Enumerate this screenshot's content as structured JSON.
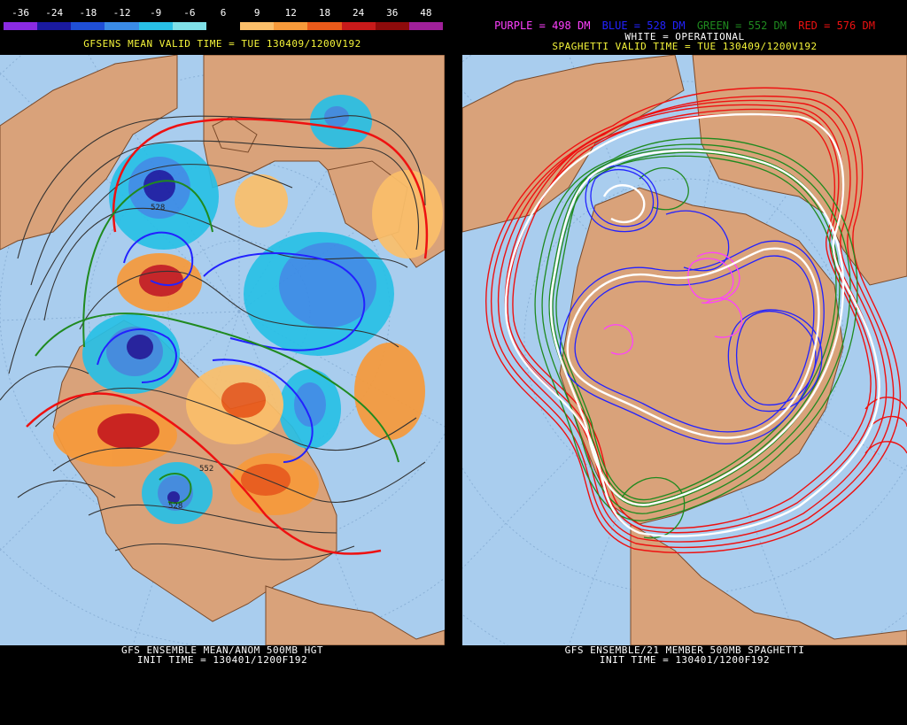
{
  "left_panel": {
    "colorbar": {
      "labels": [
        "-36",
        "-24",
        "-18",
        "-12",
        "-9",
        "-6",
        "6",
        "9",
        "12",
        "18",
        "24",
        "36",
        "48"
      ],
      "colors": [
        "#8a2be2",
        "#1a1aa0",
        "#1f4fd6",
        "#3a8be6",
        "#28c0e6",
        "#7fe0e8",
        "#000000",
        "#fbbf6a",
        "#f79a3a",
        "#ea5a1a",
        "#c81a1a",
        "#8e0b0b",
        "#a0209a"
      ]
    },
    "header": "GFSENS MEAN VALID TIME = TUE 130409/1200V192",
    "footer_line1": "GFS ENSEMBLE MEAN/ANOM 500MB HGT",
    "footer_line2": "INIT TIME = 130401/1200F192",
    "contour_labels": [
      "528",
      "528",
      "552"
    ],
    "colors": {
      "ocean": "#a9cdee",
      "land": "#d9a27a",
      "title": "#f5f53a"
    }
  },
  "right_panel": {
    "legend": {
      "purple": "PURPLE = 498 DM",
      "blue": "BLUE = 528 DM",
      "green": "GREEN = 552 DM",
      "red": "RED = 576 DM",
      "white": "WHITE = OPERATIONAL"
    },
    "header": "SPAGHETTI VALID TIME = TUE 130409/1200V192",
    "footer_line1": "GFS ENSEMBLE/21 MEMBER 500MB SPAGHETTI",
    "footer_line2": "INIT TIME = 130401/1200F192",
    "colors": {
      "purple": "#ff40ff",
      "blue": "#2222ff",
      "green": "#1f8a1f",
      "red": "#ee1111",
      "white": "#ffffff"
    }
  }
}
